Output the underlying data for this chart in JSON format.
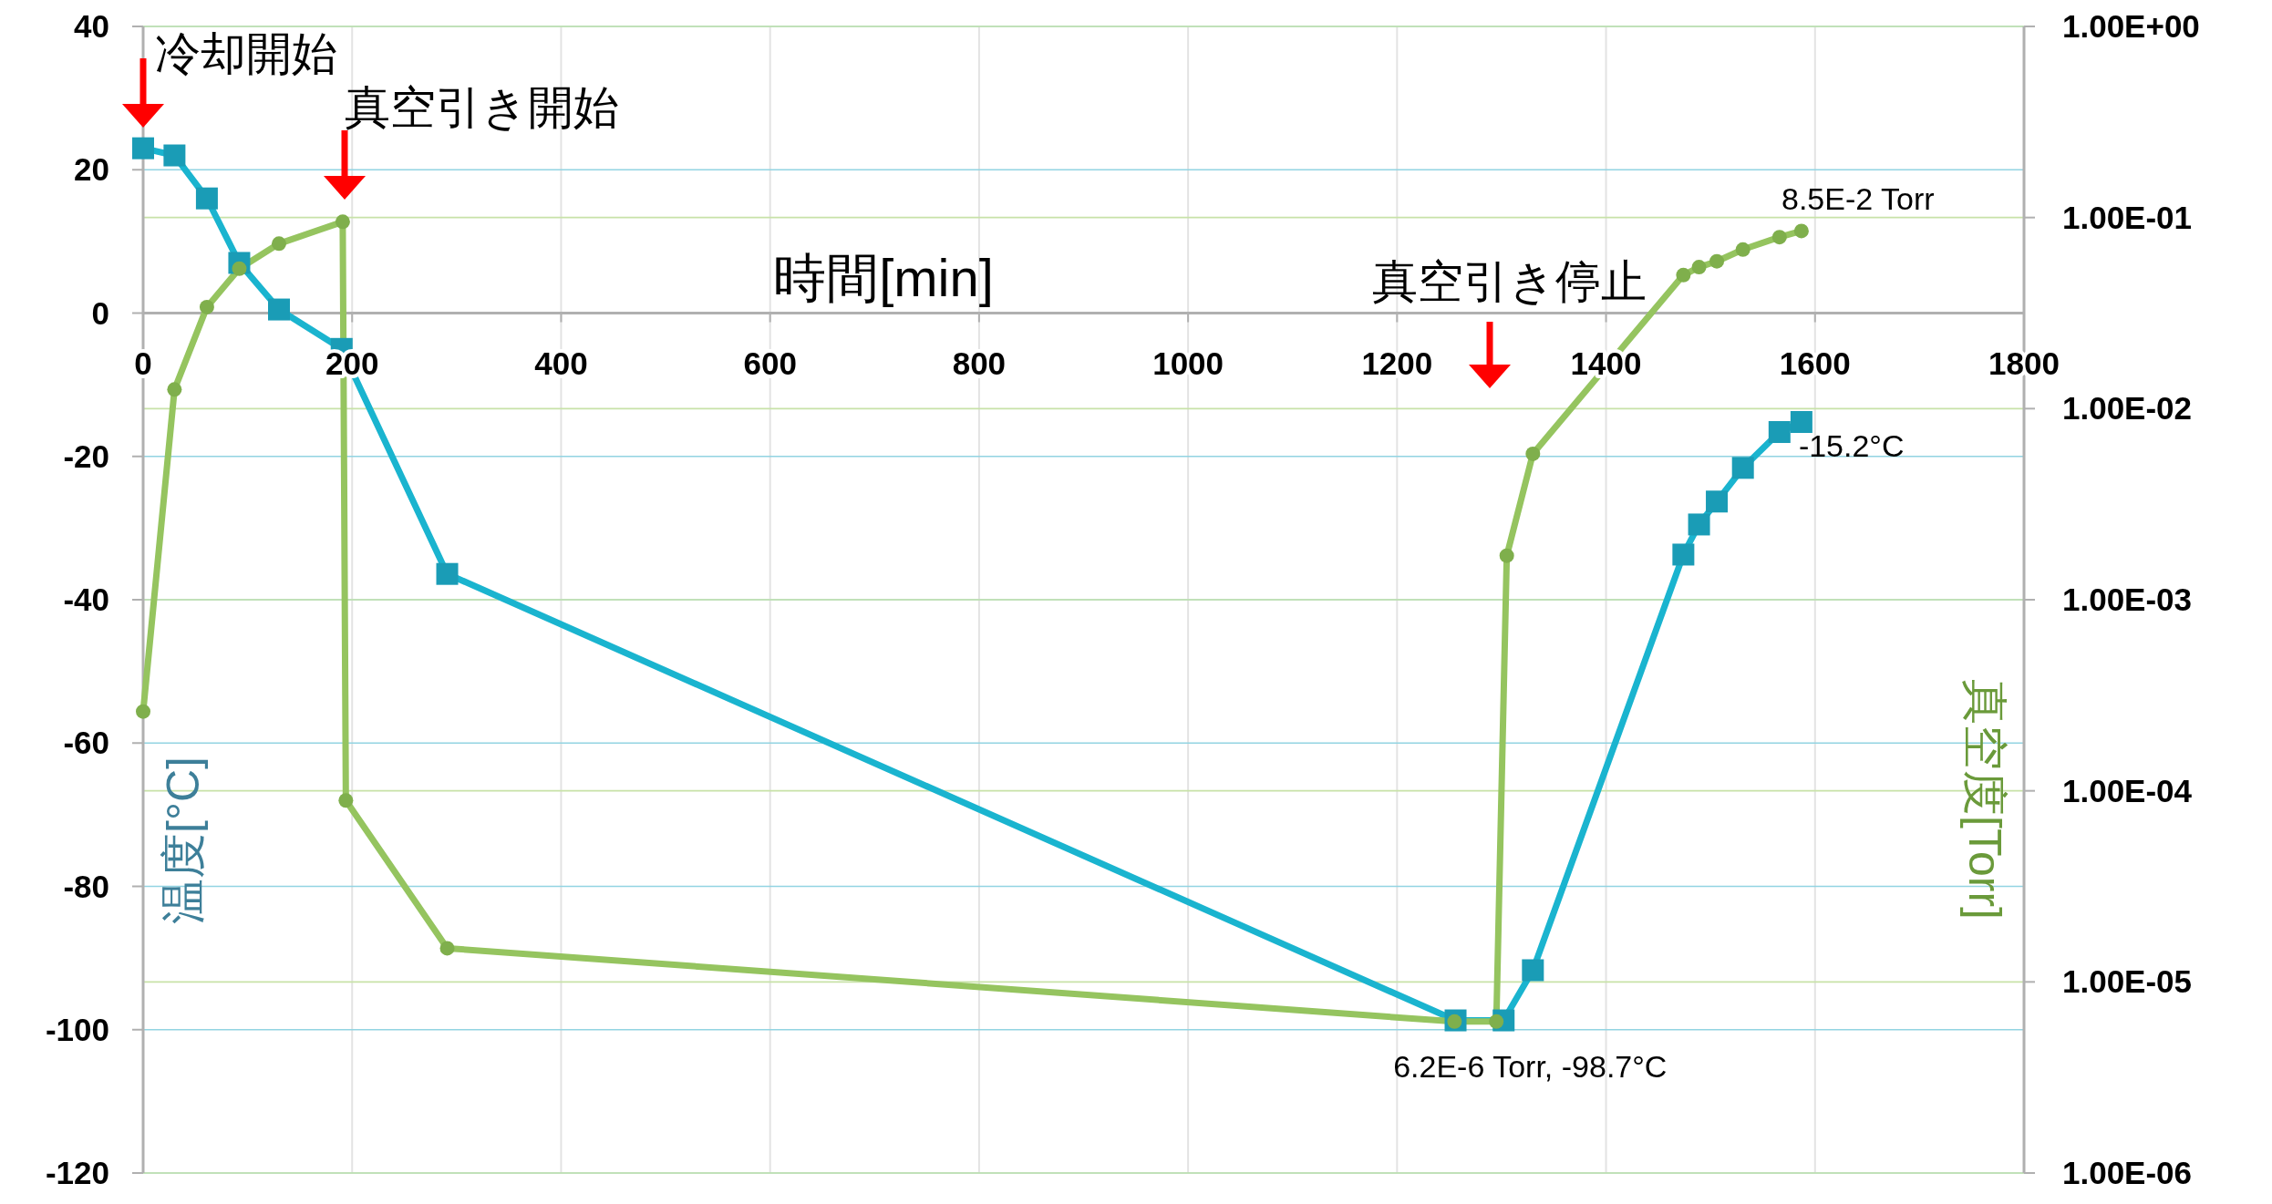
{
  "chart_data": {
    "type": "line",
    "xlabel": "時間[min]",
    "ylabel": "温度[°C]",
    "y2label": "真空度[Torr]",
    "xlim": [
      0,
      1800
    ],
    "xticks": [
      0,
      200,
      400,
      600,
      800,
      1000,
      1200,
      1400,
      1600,
      1800
    ],
    "ylim": [
      -120,
      40
    ],
    "yticks": [
      -120,
      -100,
      -80,
      -60,
      -40,
      -20,
      0,
      20,
      40
    ],
    "y2lim": [
      1e-06,
      1
    ],
    "y2ticks": [
      {
        "value": 1,
        "label": "1.00E+00"
      },
      {
        "value": 0.1,
        "label": "1.00E-01"
      },
      {
        "value": 0.01,
        "label": "1.00E-02"
      },
      {
        "value": 0.001,
        "label": "1.00E-03"
      },
      {
        "value": 0.0001,
        "label": "1.00E-04"
      },
      {
        "value": 1e-05,
        "label": "1.00E-05"
      },
      {
        "value": 1e-06,
        "label": "1.00E-06"
      }
    ],
    "log": "y2",
    "grid": true,
    "series": [
      {
        "color": "#1ab4cf",
        "marker": "square",
        "x": [
          0,
          30,
          61,
          92,
          130,
          190,
          291,
          1256,
          1302,
          1330,
          1474,
          1489,
          1506,
          1531,
          1566,
          1587
        ],
        "values": [
          23,
          22,
          16,
          7,
          0.5,
          -5,
          -36.4,
          -98.7,
          -98.7,
          -91.7,
          -33.7,
          -29.5,
          -26.3,
          -21.6,
          -16.6,
          -15.2
        ],
        "value_labels": [
          null,
          null,
          null,
          null,
          null,
          null,
          null,
          null,
          null,
          null,
          null,
          null,
          null,
          null,
          null,
          "-15.2°C"
        ]
      },
      {
        "color": "#95c45f",
        "marker": "circle",
        "axis": "y2",
        "x": [
          0,
          30,
          61,
          92,
          130,
          191,
          194,
          291,
          1255,
          1295,
          1305,
          1330,
          1474,
          1489,
          1506,
          1531,
          1566,
          1587
        ],
        "values": [
          0.00026,
          0.0126,
          0.034,
          0.054,
          0.073,
          0.095,
          8.9e-05,
          1.5e-05,
          6.2e-06,
          6.2e-06,
          0.0017,
          0.0058,
          0.05,
          0.055,
          0.059,
          0.068,
          0.079,
          0.085
        ],
        "value_labels": [
          null,
          null,
          null,
          null,
          null,
          null,
          null,
          null,
          null,
          null,
          null,
          null,
          null,
          null,
          null,
          null,
          null,
          null
        ]
      }
    ],
    "annotations": [
      "冷却開始",
      "真空引き開始",
      "真空引き停止",
      {
        "text": "6.2E-6 Torr, -98.7°C",
        "x": 1275,
        "y": -98.7
      },
      "8.5E-2 Torr"
    ]
  }
}
